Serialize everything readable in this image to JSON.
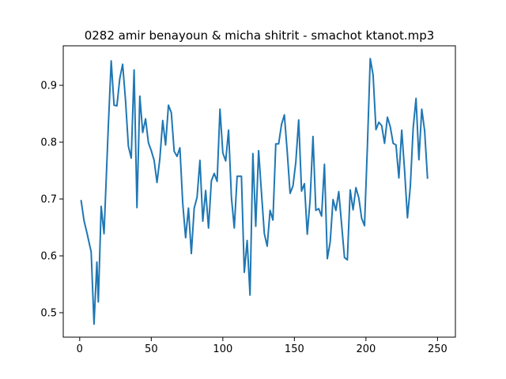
{
  "chart_data": {
    "type": "line",
    "title": "0282 amir benayoun & micha shitrit - smachot ktanot.mp3",
    "xlabel": "",
    "ylabel": "",
    "xlim": [
      -11.5,
      262.5
    ],
    "ylim": [
      0.457,
      0.9695
    ],
    "grid": false,
    "x_ticks": [
      0,
      50,
      100,
      150,
      200,
      250
    ],
    "y_ticks": [
      0.5,
      0.6,
      0.7,
      0.8,
      0.9
    ],
    "x_tick_labels": [
      "0",
      "50",
      "100",
      "150",
      "200",
      "250"
    ],
    "y_tick_labels": [
      "0.5",
      "0.6",
      "0.7",
      "0.8",
      "0.9"
    ],
    "series": [
      {
        "color": "#1f77b4",
        "points": [
          [
            1,
            0.697
          ],
          [
            3,
            0.662
          ],
          [
            5,
            0.641
          ],
          [
            8,
            0.607
          ],
          [
            10,
            0.48
          ],
          [
            12,
            0.589
          ],
          [
            13,
            0.519
          ],
          [
            15,
            0.687
          ],
          [
            17,
            0.639
          ],
          [
            20,
            0.829
          ],
          [
            22,
            0.943
          ],
          [
            24,
            0.865
          ],
          [
            26,
            0.864
          ],
          [
            28,
            0.912
          ],
          [
            30,
            0.937
          ],
          [
            32,
            0.874
          ],
          [
            34,
            0.793
          ],
          [
            36,
            0.772
          ],
          [
            38,
            0.927
          ],
          [
            40,
            0.685
          ],
          [
            42,
            0.881
          ],
          [
            44,
            0.817
          ],
          [
            46,
            0.841
          ],
          [
            48,
            0.799
          ],
          [
            50,
            0.785
          ],
          [
            52,
            0.768
          ],
          [
            54,
            0.729
          ],
          [
            56,
            0.771
          ],
          [
            58,
            0.838
          ],
          [
            60,
            0.795
          ],
          [
            62,
            0.865
          ],
          [
            64,
            0.852
          ],
          [
            66,
            0.784
          ],
          [
            68,
            0.775
          ],
          [
            70,
            0.79
          ],
          [
            72,
            0.692
          ],
          [
            74,
            0.632
          ],
          [
            76,
            0.684
          ],
          [
            78,
            0.604
          ],
          [
            80,
            0.684
          ],
          [
            82,
            0.703
          ],
          [
            84,
            0.768
          ],
          [
            86,
            0.661
          ],
          [
            88,
            0.715
          ],
          [
            90,
            0.649
          ],
          [
            92,
            0.732
          ],
          [
            94,
            0.745
          ],
          [
            96,
            0.731
          ],
          [
            98,
            0.858
          ],
          [
            100,
            0.781
          ],
          [
            102,
            0.767
          ],
          [
            104,
            0.821
          ],
          [
            106,
            0.703
          ],
          [
            108,
            0.649
          ],
          [
            110,
            0.74
          ],
          [
            113,
            0.74
          ],
          [
            115,
            0.571
          ],
          [
            117,
            0.627
          ],
          [
            119,
            0.531
          ],
          [
            121,
            0.78
          ],
          [
            123,
            0.652
          ],
          [
            125,
            0.785
          ],
          [
            127,
            0.711
          ],
          [
            129,
            0.639
          ],
          [
            131,
            0.617
          ],
          [
            133,
            0.68
          ],
          [
            135,
            0.663
          ],
          [
            137,
            0.797
          ],
          [
            139,
            0.797
          ],
          [
            141,
            0.831
          ],
          [
            143,
            0.848
          ],
          [
            145,
            0.783
          ],
          [
            147,
            0.71
          ],
          [
            149,
            0.723
          ],
          [
            151,
            0.765
          ],
          [
            153,
            0.839
          ],
          [
            155,
            0.714
          ],
          [
            157,
            0.727
          ],
          [
            159,
            0.638
          ],
          [
            161,
            0.699
          ],
          [
            163,
            0.81
          ],
          [
            165,
            0.68
          ],
          [
            167,
            0.683
          ],
          [
            169,
            0.67
          ],
          [
            171,
            0.761
          ],
          [
            173,
            0.595
          ],
          [
            175,
            0.624
          ],
          [
            177,
            0.699
          ],
          [
            179,
            0.68
          ],
          [
            181,
            0.713
          ],
          [
            183,
            0.655
          ],
          [
            185,
            0.597
          ],
          [
            187,
            0.593
          ],
          [
            189,
            0.716
          ],
          [
            191,
            0.681
          ],
          [
            193,
            0.72
          ],
          [
            195,
            0.702
          ],
          [
            197,
            0.666
          ],
          [
            199,
            0.653
          ],
          [
            201,
            0.792
          ],
          [
            203,
            0.947
          ],
          [
            205,
            0.918
          ],
          [
            207,
            0.822
          ],
          [
            209,
            0.835
          ],
          [
            211,
            0.829
          ],
          [
            213,
            0.798
          ],
          [
            215,
            0.844
          ],
          [
            217,
            0.827
          ],
          [
            219,
            0.798
          ],
          [
            221,
            0.795
          ],
          [
            223,
            0.737
          ],
          [
            225,
            0.821
          ],
          [
            227,
            0.75
          ],
          [
            229,
            0.667
          ],
          [
            231,
            0.722
          ],
          [
            233,
            0.825
          ],
          [
            235,
            0.877
          ],
          [
            237,
            0.769
          ],
          [
            239,
            0.858
          ],
          [
            241,
            0.82
          ],
          [
            243,
            0.737
          ]
        ]
      }
    ]
  }
}
